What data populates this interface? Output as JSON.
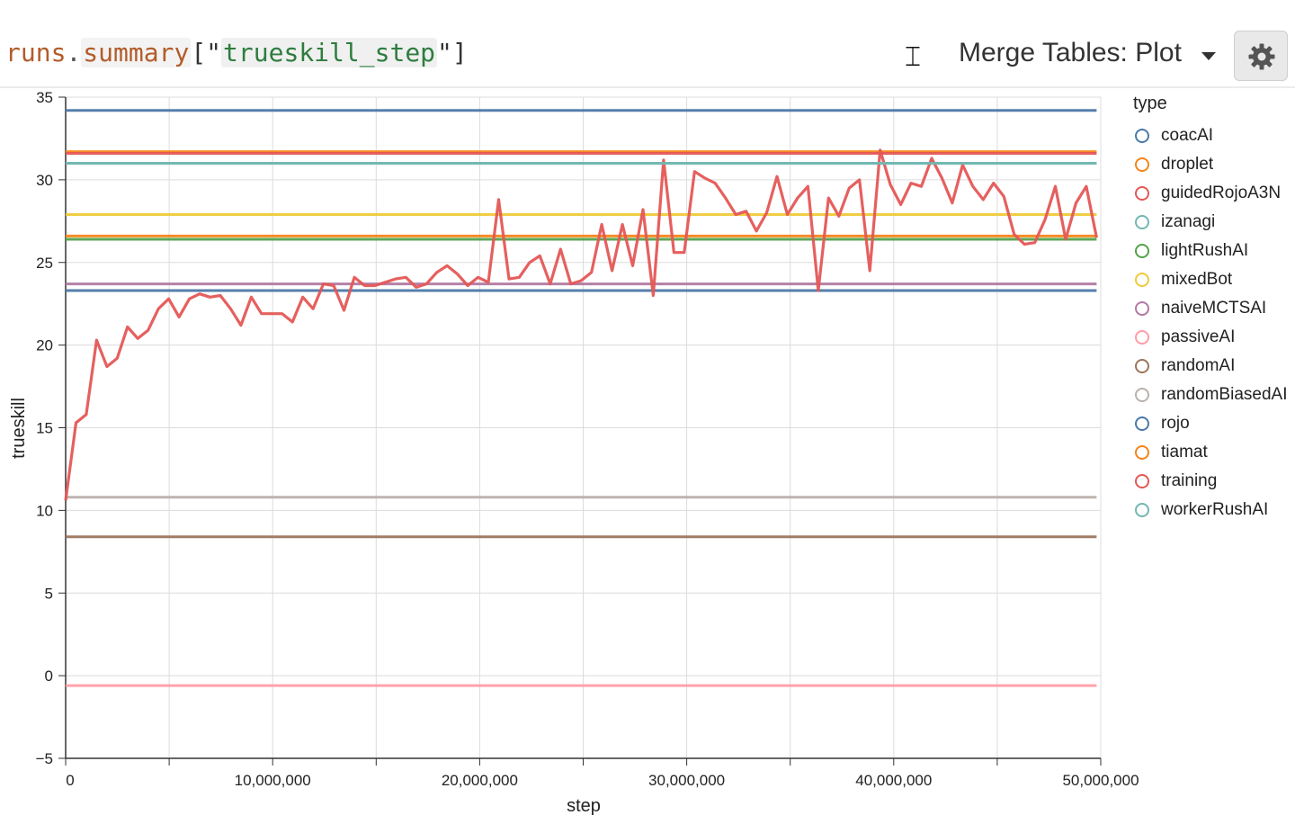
{
  "toolbar": {
    "query": {
      "object": "runs",
      "dot": ".",
      "attribute": "summary",
      "open": "[\"",
      "key": "trueskill_step",
      "close": "\"]"
    },
    "panel_type": "Merge Tables: Plot"
  },
  "chart_data": {
    "type": "line",
    "xlabel": "step",
    "ylabel": "trueskill",
    "xlim": [
      0,
      50000000
    ],
    "ylim": [
      -5,
      35
    ],
    "x_ticks": [
      0,
      10000000,
      20000000,
      30000000,
      40000000,
      50000000
    ],
    "x_tick_labels": [
      "0",
      "10,000,000",
      "20,000,000",
      "30,000,000",
      "40,000,000",
      "50,000,000"
    ],
    "y_ticks": [
      -5,
      0,
      5,
      10,
      15,
      20,
      25,
      30,
      35
    ],
    "y_tick_labels": [
      "−5",
      "0",
      "5",
      "10",
      "15",
      "20",
      "25",
      "30",
      "35"
    ],
    "grid": true,
    "legend_title": "type",
    "legend_position": "right",
    "series": [
      {
        "name": "coacAI",
        "color": "#4c78a8",
        "values": [
          34.2,
          34.2
        ]
      },
      {
        "name": "droplet",
        "color": "#f58518",
        "values": [
          31.7,
          31.7
        ]
      },
      {
        "name": "guidedRojoA3N",
        "color": "#e45756",
        "values": [
          31.6,
          31.6
        ]
      },
      {
        "name": "izanagi",
        "color": "#72b7b2",
        "values": [
          31.0,
          31.0
        ]
      },
      {
        "name": "lightRushAI",
        "color": "#54a24b",
        "values": [
          26.4,
          26.4
        ]
      },
      {
        "name": "mixedBot",
        "color": "#eeca3b",
        "values": [
          27.9,
          27.9
        ]
      },
      {
        "name": "naiveMCTSAI",
        "color": "#b279a2",
        "values": [
          23.7,
          23.7
        ]
      },
      {
        "name": "passiveAI",
        "color": "#ff9da6",
        "values": [
          -0.6,
          -0.6
        ]
      },
      {
        "name": "randomAI",
        "color": "#9d755d",
        "values": [
          8.4,
          8.4
        ]
      },
      {
        "name": "randomBiasedAI",
        "color": "#bab0ac",
        "values": [
          10.8,
          10.8
        ]
      },
      {
        "name": "rojo",
        "color": "#4c78a8",
        "values": [
          23.3,
          23.3
        ]
      },
      {
        "name": "tiamat",
        "color": "#f58518",
        "values": [
          26.6,
          26.6
        ]
      },
      {
        "name": "training",
        "color": "#e45756",
        "values": [
          10.6,
          15.3,
          15.8,
          20.3,
          18.7,
          19.2,
          21.1,
          20.4,
          20.9,
          22.2,
          22.8,
          21.7,
          22.8,
          23.1,
          22.9,
          23.0,
          22.2,
          21.2,
          22.9,
          21.9,
          21.9,
          21.9,
          21.4,
          22.9,
          22.2,
          23.7,
          23.6,
          22.1,
          24.1,
          23.6,
          23.6,
          23.8,
          24.0,
          24.1,
          23.5,
          23.7,
          24.4,
          24.8,
          24.3,
          23.6,
          24.1,
          23.8,
          28.8,
          24.0,
          24.1,
          25.0,
          25.4,
          23.7,
          25.8,
          23.7,
          23.9,
          24.4,
          27.3,
          24.5,
          27.3,
          24.8,
          28.2,
          23.0,
          31.2,
          25.6,
          25.6,
          30.5,
          30.1,
          29.8,
          28.9,
          27.9,
          28.1,
          26.9,
          28.0,
          30.2,
          27.9,
          28.9,
          29.6,
          23.3,
          28.9,
          27.8,
          29.5,
          30.0,
          24.5,
          31.8,
          29.7,
          28.5,
          29.8,
          29.6,
          31.3,
          30.1,
          28.6,
          30.9,
          29.6,
          28.8,
          29.8,
          29.0,
          26.7,
          26.1,
          26.2,
          27.6,
          29.6,
          26.4,
          28.6,
          29.6,
          26.5
        ]
      },
      {
        "name": "workerRushAI",
        "color": "#72b7b2",
        "values": [
          31.0,
          31.0
        ]
      }
    ]
  }
}
